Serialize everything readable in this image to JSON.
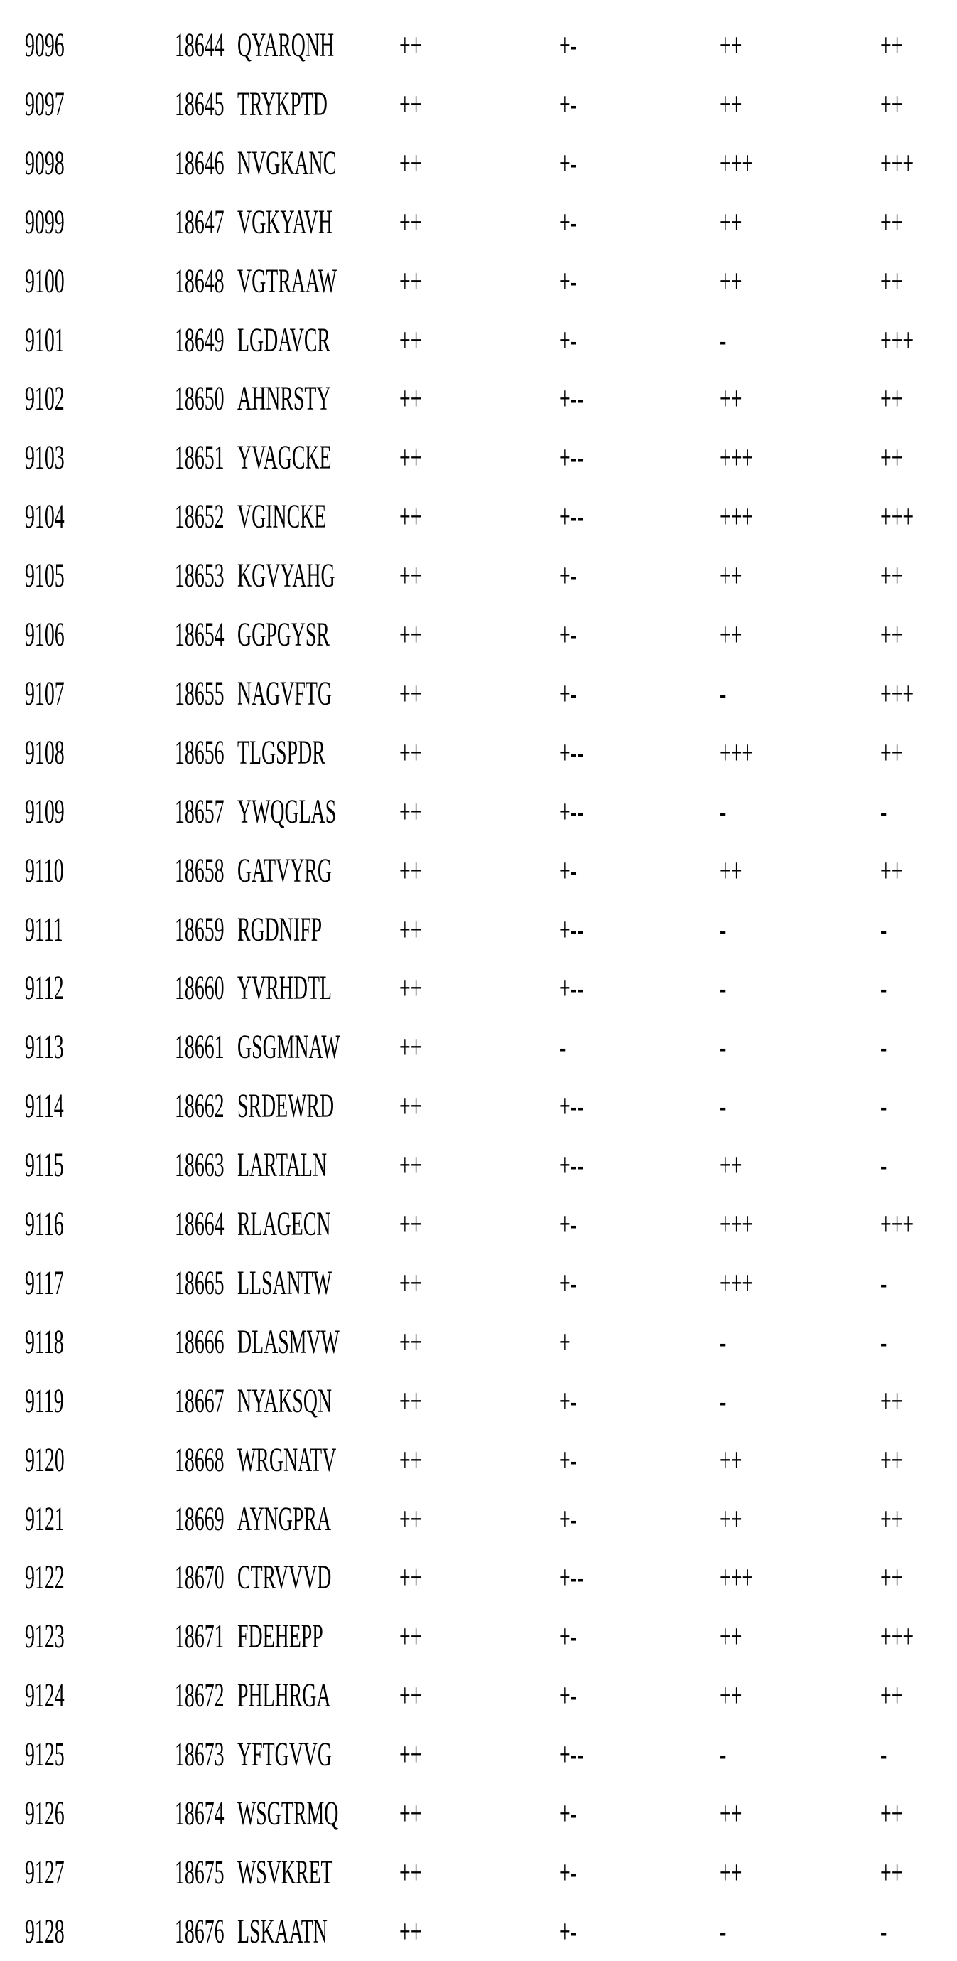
{
  "table": {
    "rows": [
      [
        "9096",
        "18644",
        "QYARQNH",
        "++",
        "+-",
        "++",
        "++"
      ],
      [
        "9097",
        "18645",
        "TRYKPTD",
        "++",
        "+-",
        "++",
        "++"
      ],
      [
        "9098",
        "18646",
        "NVGKANC",
        "++",
        "+-",
        "+++",
        "+++"
      ],
      [
        "9099",
        "18647",
        "VGKYAVH",
        "++",
        "+-",
        "++",
        "++"
      ],
      [
        "9100",
        "18648",
        "VGTRAAW",
        "++",
        "+-",
        "++",
        "++"
      ],
      [
        "9101",
        "18649",
        "LGDAVCR",
        "++",
        "+-",
        "-",
        "+++"
      ],
      [
        "9102",
        "18650",
        "AHNRSTY",
        "++",
        "+--",
        "++",
        "++"
      ],
      [
        "9103",
        "18651",
        "YVAGCKE",
        "++",
        "+--",
        "+++",
        "++"
      ],
      [
        "9104",
        "18652",
        "VGINCKE",
        "++",
        "+--",
        "+++",
        "+++"
      ],
      [
        "9105",
        "18653",
        "KGVYAHG",
        "++",
        "+-",
        "++",
        "++"
      ],
      [
        "9106",
        "18654",
        "GGPGYSR",
        "++",
        "+-",
        "++",
        "++"
      ],
      [
        "9107",
        "18655",
        "NAGVFTG",
        "++",
        "+-",
        "-",
        "+++"
      ],
      [
        "9108",
        "18656",
        "TLGSPDR",
        "++",
        "+--",
        "+++",
        "++"
      ],
      [
        "9109",
        "18657",
        "YWQGLAS",
        "++",
        "+--",
        "-",
        "-"
      ],
      [
        "9110",
        "18658",
        "GATVYRG",
        "++",
        "+-",
        "++",
        "++"
      ],
      [
        "9111",
        "18659",
        "RGDNIFP",
        "++",
        "+--",
        "-",
        "-"
      ],
      [
        "9112",
        "18660",
        "YVRHDTL",
        "++",
        "+--",
        "-",
        "-"
      ],
      [
        "9113",
        "18661",
        "GSGMNAW",
        "++",
        "-",
        "-",
        "-"
      ],
      [
        "9114",
        "18662",
        "SRDEWRD",
        "++",
        "+--",
        "-",
        "-"
      ],
      [
        "9115",
        "18663",
        "LARTALN",
        "++",
        "+--",
        "++",
        "-"
      ],
      [
        "9116",
        "18664",
        "RLAGECN",
        "++",
        "+-",
        "+++",
        "+++"
      ],
      [
        "9117",
        "18665",
        "LLSANTW",
        "++",
        "+-",
        "+++",
        "-"
      ],
      [
        "9118",
        "18666",
        "DLASMVW",
        "++",
        "+",
        "-",
        "-"
      ],
      [
        "9119",
        "18667",
        "NYAKSQN",
        "++",
        "+-",
        "-",
        "++"
      ],
      [
        "9120",
        "18668",
        "WRGNATV",
        "++",
        "+-",
        "++",
        "++"
      ],
      [
        "9121",
        "18669",
        "AYNGPRA",
        "++",
        "+-",
        "++",
        "++"
      ],
      [
        "9122",
        "18670",
        "CTRVVVD",
        "++",
        "+--",
        "+++",
        "++"
      ],
      [
        "9123",
        "18671",
        "FDEHEPP",
        "++",
        "+-",
        "++",
        "+++"
      ],
      [
        "9124",
        "18672",
        "PHLHRGA",
        "++",
        "+-",
        "++",
        "++"
      ],
      [
        "9125",
        "18673",
        "YFTGVVG",
        "++",
        "+--",
        "-",
        "-"
      ],
      [
        "9126",
        "18674",
        "WSGTRMQ",
        "++",
        "+-",
        "++",
        "++"
      ],
      [
        "9127",
        "18675",
        "WSVKRET",
        "++",
        "+-",
        "++",
        "++"
      ],
      [
        "9128",
        "18676",
        "LSKAATN",
        "++",
        "+-",
        "-",
        "-"
      ]
    ]
  }
}
